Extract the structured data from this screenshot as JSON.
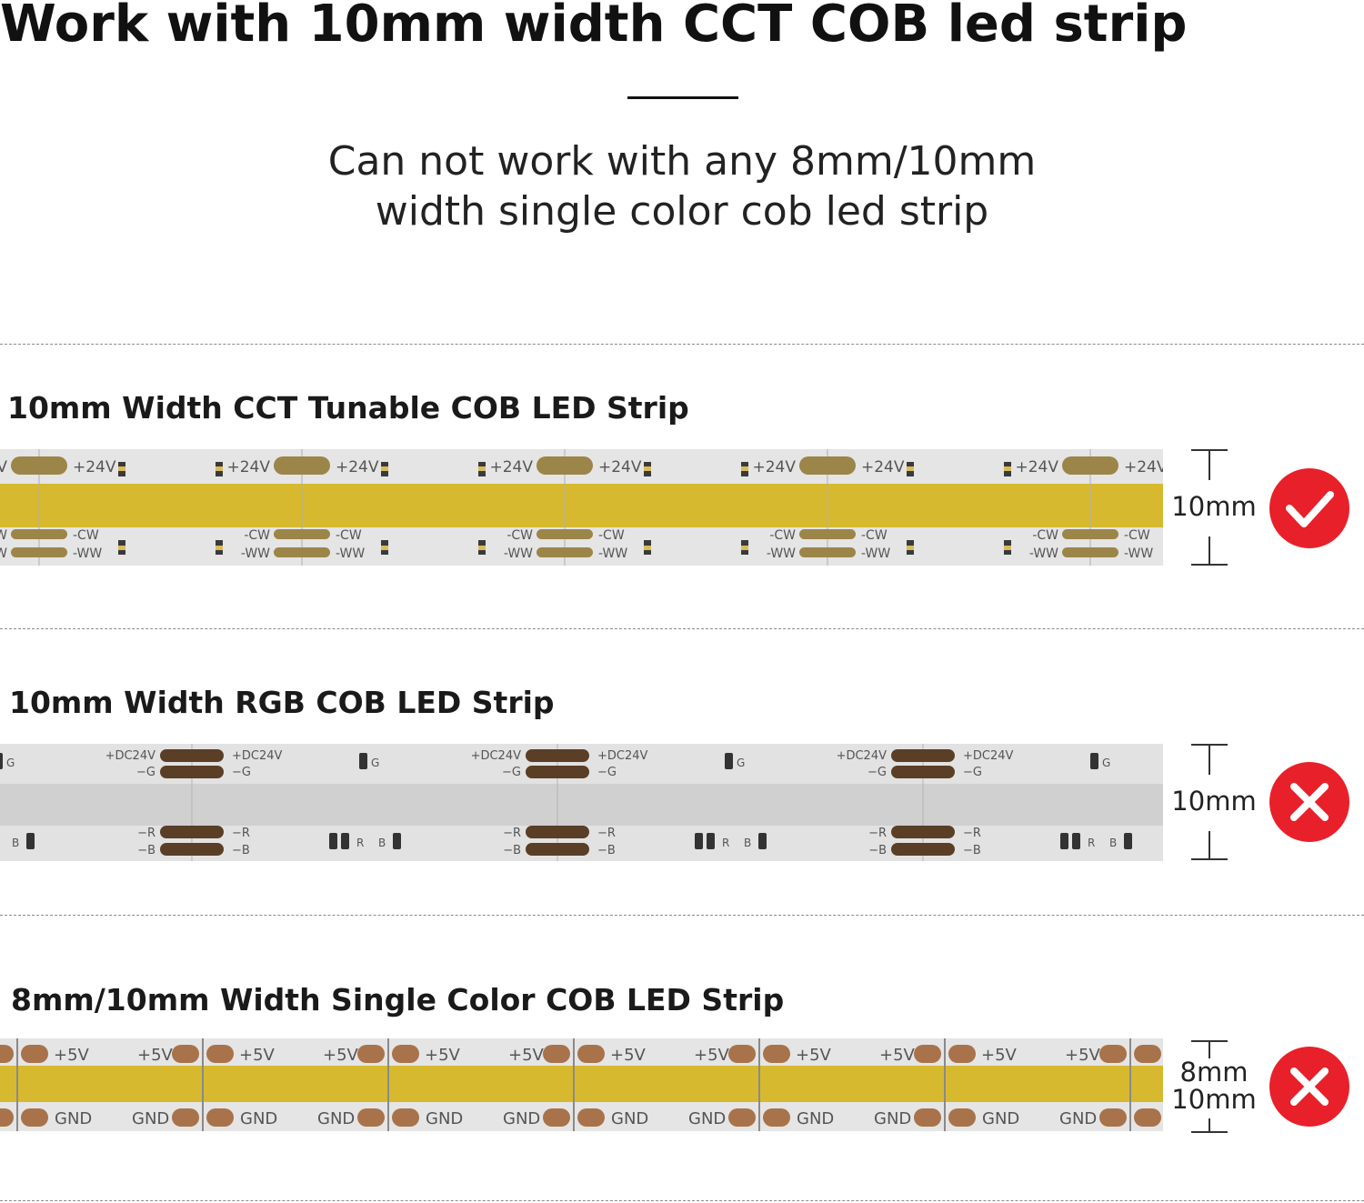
{
  "header": {
    "title": "Work with 10mm width CCT COB led strip",
    "subtitle_line1": "Can not work with any 8mm/10mm",
    "subtitle_line2": "width single color cob led strip"
  },
  "colors": {
    "accent_red": "#e8202a",
    "cob_yellow": "#d7b92f",
    "pad_gold": "#9c8548",
    "pad_dark_brown": "#5a3e26",
    "pad_copper": "#a8734a",
    "strip_board": "#e4e4e4"
  },
  "sections": [
    {
      "title": "10mm Width CCT Tunable COB LED Strip",
      "width_label": "10mm",
      "compatible": true,
      "badge_icon": "check-icon",
      "strip_type": "cct",
      "labels": {
        "power": "+24V",
        "cw": "-CW",
        "ww": "-WW"
      }
    },
    {
      "title": "10mm Width RGB COB LED Strip",
      "width_label": "10mm",
      "compatible": false,
      "badge_icon": "cross-icon",
      "strip_type": "rgb",
      "labels": {
        "power": "+DC24V",
        "g": "−G",
        "r": "−R",
        "b": "−B",
        "chip_g": "G",
        "chip_r": "R",
        "chip_b": "B"
      }
    },
    {
      "title": "8mm/10mm Width Single Color COB LED Strip",
      "width_label_top": "8mm",
      "width_label_bottom": "10mm",
      "compatible": false,
      "badge_icon": "cross-icon",
      "strip_type": "single",
      "labels": {
        "power": "+5V",
        "gnd": "GND"
      }
    }
  ]
}
